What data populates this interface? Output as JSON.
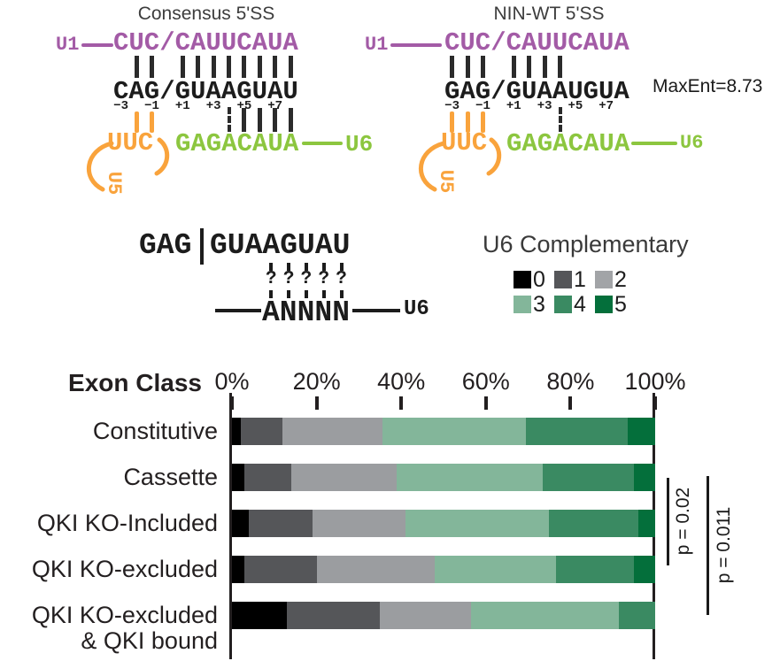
{
  "colors": {
    "purple": "#a35ba6",
    "lime_green": "#8cc63f",
    "orange": "#f9a33c",
    "bond": "#2b2b2b",
    "ink": "#1c1c1c"
  },
  "diagrams": [
    {
      "title": "Consensus 5'SS",
      "u1_label": "U1",
      "u1_seq": "CUC/CAUUCAUA",
      "mrna_seq": "CAG/GUAAGUAU",
      "pos_labels": [
        {
          "text": "−3",
          "char": 0
        },
        {
          "text": "−1",
          "char": 2
        },
        {
          "text": "+1",
          "char": 4
        },
        {
          "text": "+3",
          "char": 6
        },
        {
          "text": "+5",
          "char": 8
        },
        {
          "text": "+7",
          "char": 10
        }
      ],
      "u1_pair_cols": [
        1,
        2,
        4,
        5,
        6,
        7,
        8,
        9,
        10,
        11
      ],
      "u5_label": "U5",
      "u5_seq": "UUC",
      "u5_pair_cols": [
        1,
        2
      ],
      "u6_seq": "GAGACAUA",
      "u6_label": "U6",
      "u6_pair_cols_solid": [
        8,
        9,
        10,
        11
      ],
      "u6_pair_cols_dotted": [
        7
      ],
      "maxent": ""
    },
    {
      "title": "NIN-WT 5'SS",
      "u1_label": "U1",
      "u1_seq": "CUC/CAUUCAUA",
      "mrna_seq": "GAG/GUAAUGUA",
      "pos_labels": [
        {
          "text": "−3",
          "char": 0
        },
        {
          "text": "−1",
          "char": 2
        },
        {
          "text": "+1",
          "char": 4
        },
        {
          "text": "+3",
          "char": 6
        },
        {
          "text": "+5",
          "char": 8
        },
        {
          "text": "+7",
          "char": 10
        }
      ],
      "u1_pair_cols": [
        0,
        1,
        2,
        4,
        5,
        6,
        7
      ],
      "u5_label": "U5",
      "u5_seq": "UUC",
      "u5_pair_cols": [
        0,
        1,
        2
      ],
      "u6_seq": "GAGACAUA",
      "u6_label": "U6",
      "u6_pair_cols_solid": [],
      "u6_pair_cols_dotted": [
        7
      ],
      "maxent": "MaxEnt=8.73"
    }
  ],
  "hypothesis": {
    "exon_seq": "GAG",
    "intron_seq": "GUAAGUAU",
    "q_mark": "?",
    "q_cols": [
      3,
      4,
      5,
      6,
      7
    ],
    "u6_seq": "ANNNN",
    "u6_label": "U6"
  },
  "legend": {
    "title": "U6 Complementary",
    "items": [
      {
        "label": "0",
        "color": "#000000"
      },
      {
        "label": "1",
        "color": "#555659"
      },
      {
        "label": "2",
        "color": "#a2a4a7"
      },
      {
        "label": "3",
        "color": "#83b69a"
      },
      {
        "label": "4",
        "color": "#3a8a62"
      },
      {
        "label": "5",
        "color": "#046f3b"
      }
    ]
  },
  "chart_data": {
    "type": "stacked-bar-horizontal",
    "header": "Exon Class",
    "xticks": [
      "0%",
      "20%",
      "40%",
      "60%",
      "80%",
      "100%"
    ],
    "xlim": [
      0,
      100
    ],
    "series_labels": [
      "0",
      "1",
      "2",
      "3",
      "4",
      "5"
    ],
    "series_colors": [
      "#000000",
      "#555659",
      "#9b9da0",
      "#83b69a",
      "#3a8a62",
      "#046f3b"
    ],
    "rows": [
      {
        "label_lines": [
          "Constitutive"
        ],
        "values": [
          2,
          10,
          23.5,
          34,
          24,
          6.5
        ]
      },
      {
        "label_lines": [
          "Cassette"
        ],
        "values": [
          3,
          11,
          25,
          34.5,
          21.5,
          5
        ]
      },
      {
        "label_lines": [
          "QKI KO-Included"
        ],
        "values": [
          4,
          15,
          22,
          34,
          21,
          4
        ]
      },
      {
        "label_lines": [
          "QKI KO-excluded"
        ],
        "values": [
          3,
          17,
          28,
          28.5,
          18.5,
          5
        ]
      },
      {
        "label_lines": [
          "QKI KO-excluded",
          "& QKI bound"
        ],
        "values": [
          13,
          22,
          21.5,
          35,
          8.5,
          0
        ]
      }
    ],
    "annotations": [
      {
        "text": "p = 0.02"
      },
      {
        "text": "p = 0.011"
      }
    ]
  }
}
